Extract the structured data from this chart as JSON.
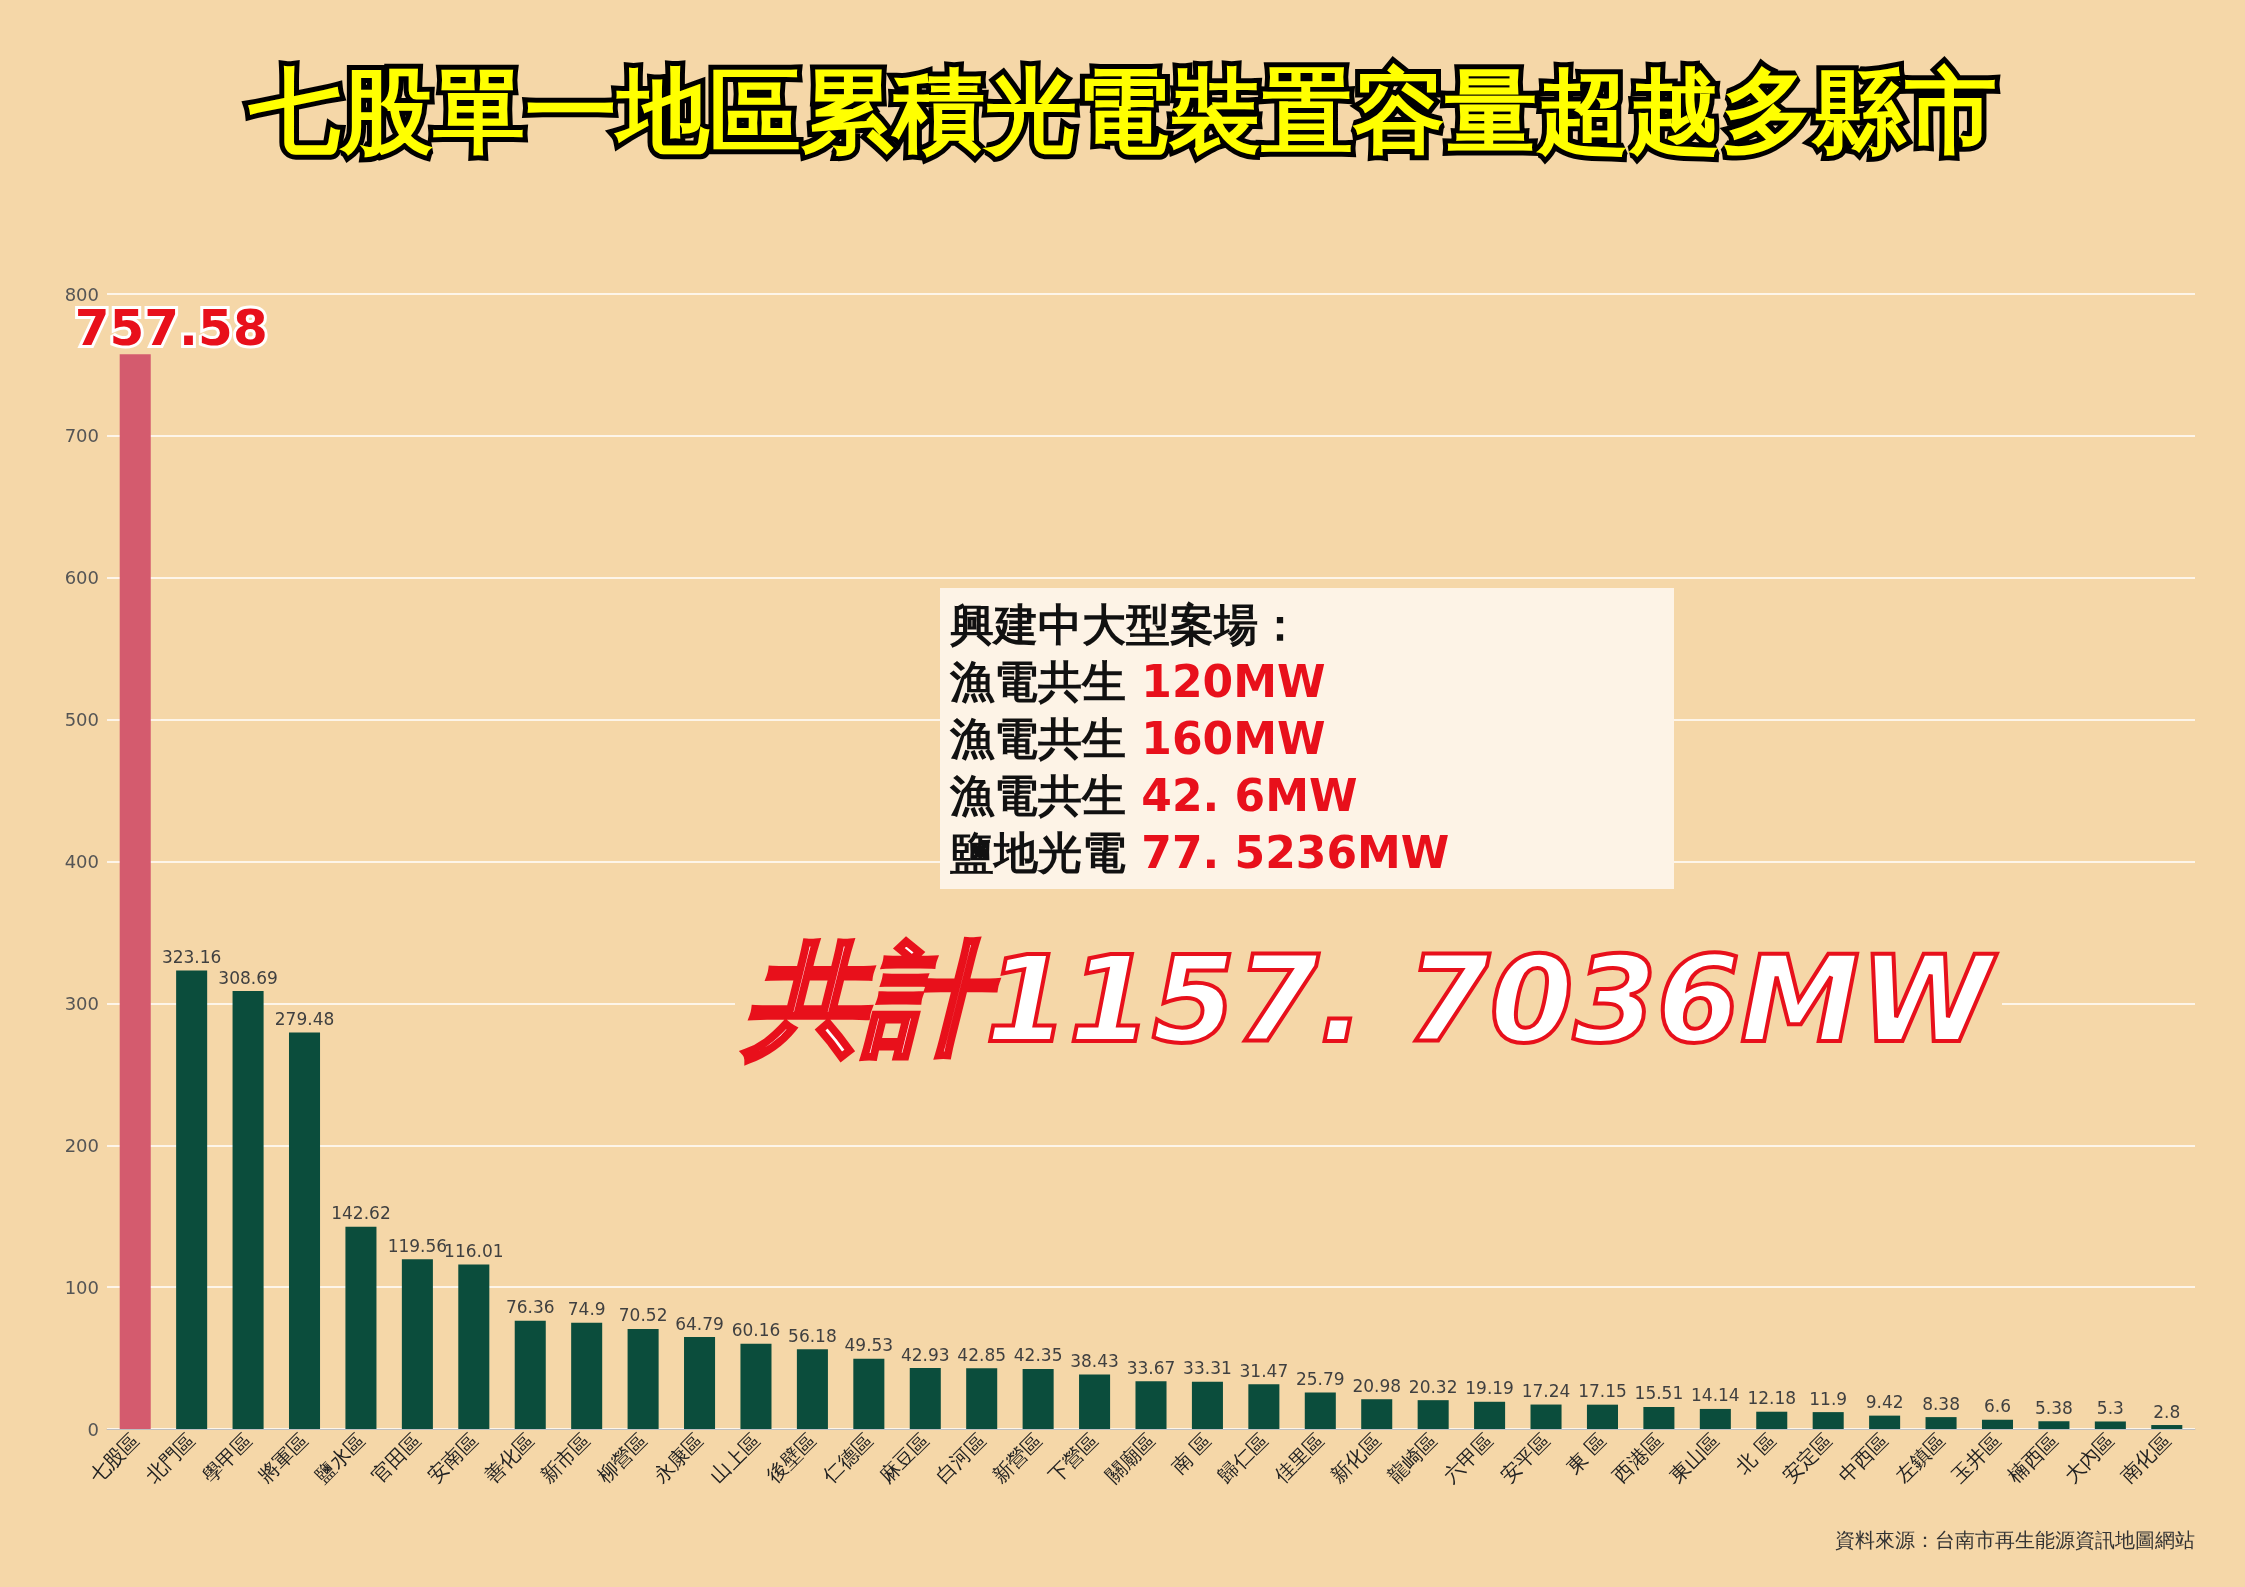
{
  "chart_data": {
    "type": "bar",
    "title": "七股單一地區累積光電裝置容量超越多縣市",
    "categories": [
      "七股區",
      "北門區",
      "學甲區",
      "將軍區",
      "鹽水區",
      "官田區",
      "安南區",
      "善化區",
      "新市區",
      "柳營區",
      "永康區",
      "山上區",
      "後壁區",
      "仁德區",
      "麻豆區",
      "白河區",
      "新營區",
      "下營區",
      "關廟區",
      "南 區",
      "歸仁區",
      "佳里區",
      "新化區",
      "龍崎區",
      "六甲區",
      "安平區",
      "東 區",
      "西港區",
      "東山區",
      "北 區",
      "安定區",
      "中西區",
      "左鎮區",
      "玉井區",
      "楠西區",
      "大內區",
      "南化區"
    ],
    "values": [
      757.58,
      323.16,
      308.69,
      279.48,
      142.62,
      119.56,
      116.01,
      76.36,
      74.9,
      70.52,
      64.79,
      60.16,
      56.18,
      49.53,
      42.93,
      42.85,
      42.35,
      38.43,
      33.67,
      33.31,
      31.47,
      25.79,
      20.98,
      20.32,
      19.19,
      17.24,
      17.15,
      15.51,
      14.14,
      12.18,
      11.9,
      9.42,
      8.38,
      6.6,
      5.38,
      5.3,
      2.8
    ],
    "colors": [
      "#d45b6e",
      "#0b4d3c",
      "#0b4d3c",
      "#0b4d3c",
      "#0b4d3c",
      "#0b4d3c",
      "#0b4d3c",
      "#0b4d3c",
      "#0b4d3c",
      "#0b4d3c",
      "#0b4d3c",
      "#0b4d3c",
      "#0b4d3c",
      "#0b4d3c",
      "#0b4d3c",
      "#0b4d3c",
      "#0b4d3c",
      "#0b4d3c",
      "#0b4d3c",
      "#0b4d3c",
      "#0b4d3c",
      "#0b4d3c",
      "#0b4d3c",
      "#0b4d3c",
      "#0b4d3c",
      "#0b4d3c",
      "#0b4d3c",
      "#0b4d3c",
      "#0b4d3c",
      "#0b4d3c",
      "#0b4d3c",
      "#0b4d3c",
      "#0b4d3c",
      "#0b4d3c",
      "#0b4d3c",
      "#0b4d3c",
      "#0b4d3c"
    ],
    "ylim": [
      0,
      800
    ],
    "yticks": [
      0,
      100,
      200,
      300,
      400,
      500,
      600,
      700,
      800
    ],
    "grid": "y",
    "data_labels": true,
    "annotations": [
      "興建中大型案場：",
      "漁電共生 120MW",
      "漁電共生 160MW",
      "漁電共生 42. 6MW",
      "鹽地光電 77. 5236MW",
      "共計1157. 7036MW",
      "資料來源：台南市再生能源資訊地圖網站"
    ]
  }
}
